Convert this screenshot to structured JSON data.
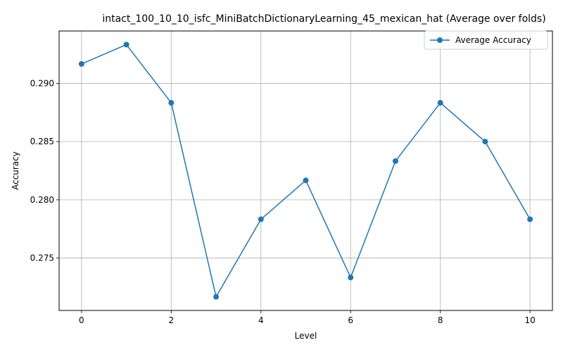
{
  "chart_data": {
    "type": "line",
    "title": "intact_100_10_10_isfc_MiniBatchDictionaryLearning_45_mexican_hat (Average over folds)",
    "xlabel": "Level",
    "ylabel": "Accuracy",
    "x": [
      0,
      1,
      2,
      3,
      4,
      5,
      6,
      7,
      8,
      9,
      10
    ],
    "series": [
      {
        "name": "Average Accuracy",
        "color": "#1f77b4",
        "marker": "circle",
        "values": [
          0.29167,
          0.29333,
          0.28833,
          0.27167,
          0.27833,
          0.28167,
          0.27333,
          0.28333,
          0.28833,
          0.285,
          0.27833
        ]
      }
    ],
    "xlim": [
      -0.5,
      10.5
    ],
    "ylim": [
      0.2705,
      0.2945
    ],
    "xticks": [
      0,
      2,
      4,
      6,
      8,
      10
    ],
    "yticks": [
      0.275,
      0.28,
      0.285,
      0.29
    ],
    "xtick_labels": [
      "0",
      "2",
      "4",
      "6",
      "8",
      "10"
    ],
    "ytick_labels": [
      "0.275",
      "0.280",
      "0.285",
      "0.290"
    ],
    "grid": true,
    "legend_position": "top-right"
  }
}
